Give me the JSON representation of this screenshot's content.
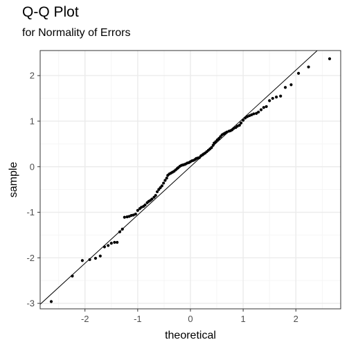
{
  "chart_data": {
    "type": "scatter",
    "title": "Q-Q Plot",
    "subtitle": "for Normality of Errors",
    "xlabel": "theoretical",
    "ylabel": "sample",
    "xlim": [
      -2.85,
      2.85
    ],
    "ylim": [
      -3.12,
      2.55
    ],
    "xticks": [
      -2,
      -1,
      0,
      1,
      2
    ],
    "xtick_labels": [
      "-2",
      "-1",
      "0",
      "1",
      "2"
    ],
    "yticks": [
      -3,
      -2,
      -1,
      0,
      1,
      2
    ],
    "ytick_labels": [
      "-3",
      "-2",
      "-1",
      "0",
      "1",
      "2"
    ],
    "grid": true,
    "reference_line": {
      "intercept": 0.0,
      "slope": 1.06
    },
    "points": [
      [
        -2.64,
        -2.96
      ],
      [
        -2.24,
        -2.4
      ],
      [
        -2.05,
        -2.06
      ],
      [
        -1.91,
        -2.04
      ],
      [
        -1.8,
        -2.01
      ],
      [
        -1.71,
        -1.96
      ],
      [
        -1.63,
        -1.76
      ],
      [
        -1.56,
        -1.73
      ],
      [
        -1.5,
        -1.68
      ],
      [
        -1.44,
        -1.66
      ],
      [
        -1.39,
        -1.66
      ],
      [
        -1.34,
        -1.43
      ],
      [
        -1.29,
        -1.37
      ],
      [
        -1.25,
        -1.11
      ],
      [
        -1.2,
        -1.1
      ],
      [
        -1.16,
        -1.09
      ],
      [
        -1.12,
        -1.07
      ],
      [
        -1.08,
        -1.06
      ],
      [
        -1.04,
        -1.04
      ],
      [
        -1.0,
        -0.96
      ],
      [
        -0.96,
        -0.92
      ],
      [
        -0.93,
        -0.89
      ],
      [
        -0.89,
        -0.87
      ],
      [
        -0.86,
        -0.84
      ],
      [
        -0.82,
        -0.79
      ],
      [
        -0.79,
        -0.76
      ],
      [
        -0.76,
        -0.74
      ],
      [
        -0.73,
        -0.71
      ],
      [
        -0.69,
        -0.67
      ],
      [
        -0.66,
        -0.63
      ],
      [
        -0.63,
        -0.55
      ],
      [
        -0.6,
        -0.5
      ],
      [
        -0.57,
        -0.46
      ],
      [
        -0.54,
        -0.42
      ],
      [
        -0.51,
        -0.36
      ],
      [
        -0.48,
        -0.3
      ],
      [
        -0.45,
        -0.25
      ],
      [
        -0.43,
        -0.19
      ],
      [
        -0.4,
        -0.16
      ],
      [
        -0.37,
        -0.14
      ],
      [
        -0.34,
        -0.12
      ],
      [
        -0.31,
        -0.1
      ],
      [
        -0.28,
        -0.07
      ],
      [
        -0.25,
        -0.04
      ],
      [
        -0.23,
        -0.02
      ],
      [
        -0.2,
        0.01
      ],
      [
        -0.17,
        0.03
      ],
      [
        -0.14,
        0.04
      ],
      [
        -0.11,
        0.05
      ],
      [
        -0.09,
        0.06
      ],
      [
        -0.06,
        0.08
      ],
      [
        -0.03,
        0.09
      ],
      [
        0.0,
        0.11
      ],
      [
        0.03,
        0.13
      ],
      [
        0.06,
        0.14
      ],
      [
        0.09,
        0.16
      ],
      [
        0.11,
        0.18
      ],
      [
        0.14,
        0.19
      ],
      [
        0.17,
        0.2
      ],
      [
        0.2,
        0.24
      ],
      [
        0.23,
        0.26
      ],
      [
        0.25,
        0.28
      ],
      [
        0.28,
        0.3
      ],
      [
        0.31,
        0.33
      ],
      [
        0.34,
        0.36
      ],
      [
        0.37,
        0.39
      ],
      [
        0.4,
        0.42
      ],
      [
        0.43,
        0.47
      ],
      [
        0.45,
        0.52
      ],
      [
        0.48,
        0.55
      ],
      [
        0.51,
        0.59
      ],
      [
        0.54,
        0.62
      ],
      [
        0.57,
        0.66
      ],
      [
        0.6,
        0.7
      ],
      [
        0.63,
        0.72
      ],
      [
        0.66,
        0.74
      ],
      [
        0.69,
        0.76
      ],
      [
        0.73,
        0.78
      ],
      [
        0.76,
        0.79
      ],
      [
        0.79,
        0.81
      ],
      [
        0.82,
        0.84
      ],
      [
        0.86,
        0.86
      ],
      [
        0.89,
        0.89
      ],
      [
        0.93,
        0.91
      ],
      [
        0.96,
        0.96
      ],
      [
        1.0,
        1.02
      ],
      [
        1.04,
        1.07
      ],
      [
        1.08,
        1.1
      ],
      [
        1.12,
        1.12
      ],
      [
        1.16,
        1.14
      ],
      [
        1.2,
        1.16
      ],
      [
        1.25,
        1.17
      ],
      [
        1.29,
        1.2
      ],
      [
        1.34,
        1.25
      ],
      [
        1.39,
        1.3
      ],
      [
        1.44,
        1.32
      ],
      [
        1.5,
        1.45
      ],
      [
        1.56,
        1.5
      ],
      [
        1.63,
        1.53
      ],
      [
        1.71,
        1.55
      ],
      [
        1.8,
        1.74
      ],
      [
        1.91,
        1.8
      ],
      [
        2.05,
        2.05
      ],
      [
        2.24,
        2.19
      ],
      [
        2.64,
        2.37
      ]
    ],
    "colors": {
      "panel_border": "#333333",
      "grid_major": "#ebebeb",
      "grid_minor": "#f5f5f5",
      "points": "#000000",
      "line": "#000000"
    }
  }
}
